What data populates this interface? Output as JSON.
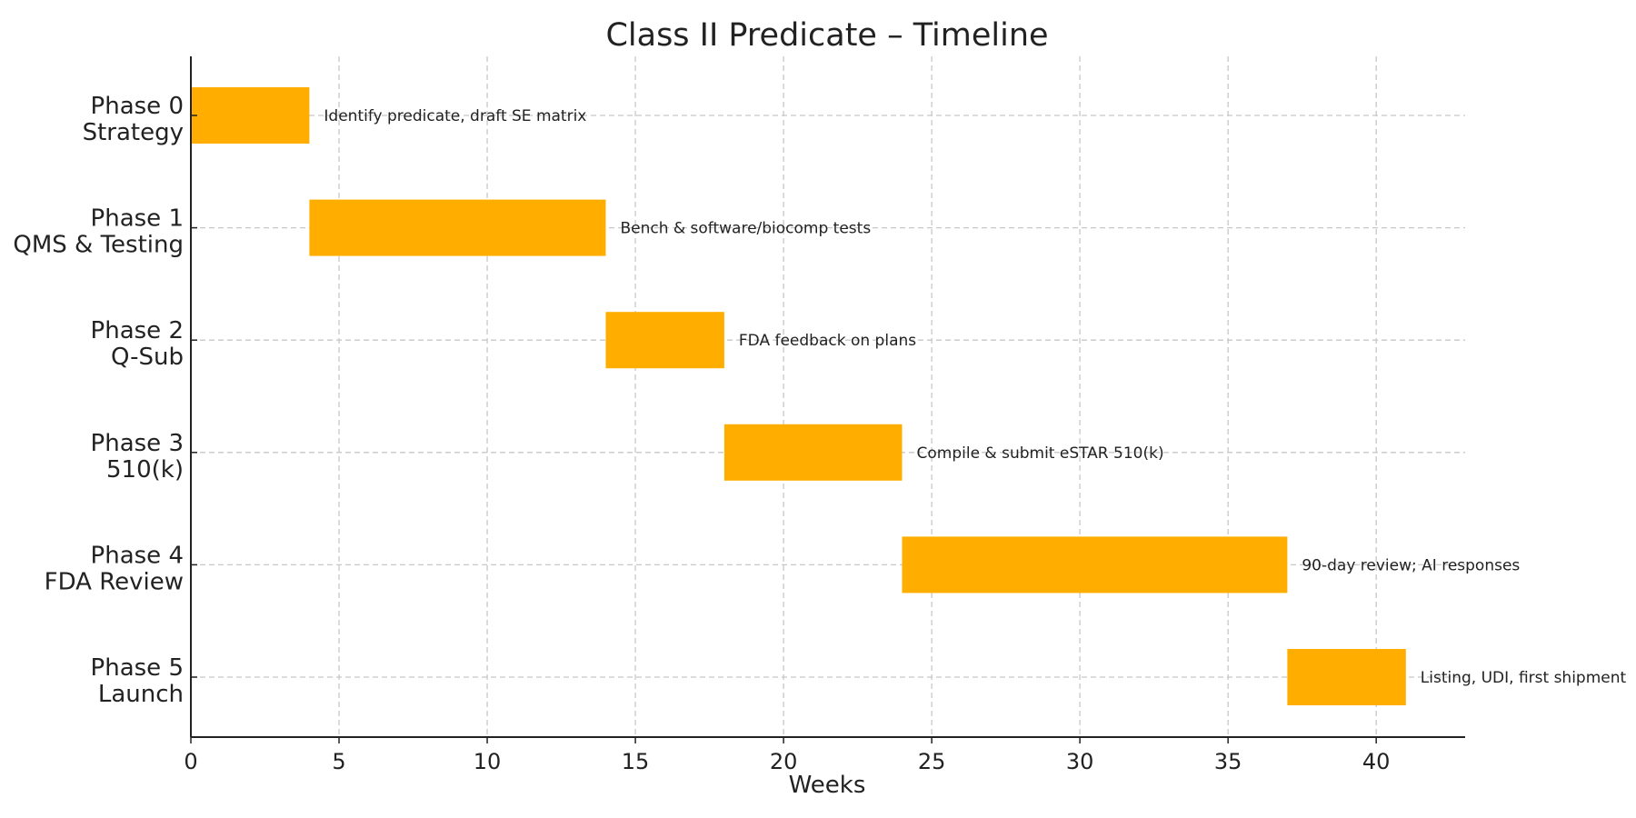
{
  "chart_data": {
    "type": "bar",
    "orientation": "horizontal-gantt",
    "title": "Class II Predicate – Timeline",
    "xlabel": "Weeks",
    "ylabel": "",
    "xlim": [
      0,
      43
    ],
    "xticks": [
      0,
      5,
      10,
      15,
      20,
      25,
      30,
      35,
      40
    ],
    "grid": true,
    "bar_color": "#FFAE00",
    "tasks": [
      {
        "line1": "Phase 0",
        "line2": "Strategy",
        "start": 0,
        "end": 4,
        "note": "Identify predicate, draft SE matrix"
      },
      {
        "line1": "Phase 1",
        "line2": "QMS & Testing",
        "start": 4,
        "end": 14,
        "note": "Bench & software/biocomp tests"
      },
      {
        "line1": "Phase 2",
        "line2": "Q-Sub",
        "start": 14,
        "end": 18,
        "note": "FDA feedback on plans"
      },
      {
        "line1": "Phase 3",
        "line2": "510(k)",
        "start": 18,
        "end": 24,
        "note": "Compile & submit eSTAR 510(k)"
      },
      {
        "line1": "Phase 4",
        "line2": "FDA Review",
        "start": 24,
        "end": 37,
        "note": "90-day review; AI responses"
      },
      {
        "line1": "Phase 5",
        "line2": "Launch",
        "start": 37,
        "end": 41,
        "note": "Listing, UDI, first shipment"
      }
    ]
  }
}
